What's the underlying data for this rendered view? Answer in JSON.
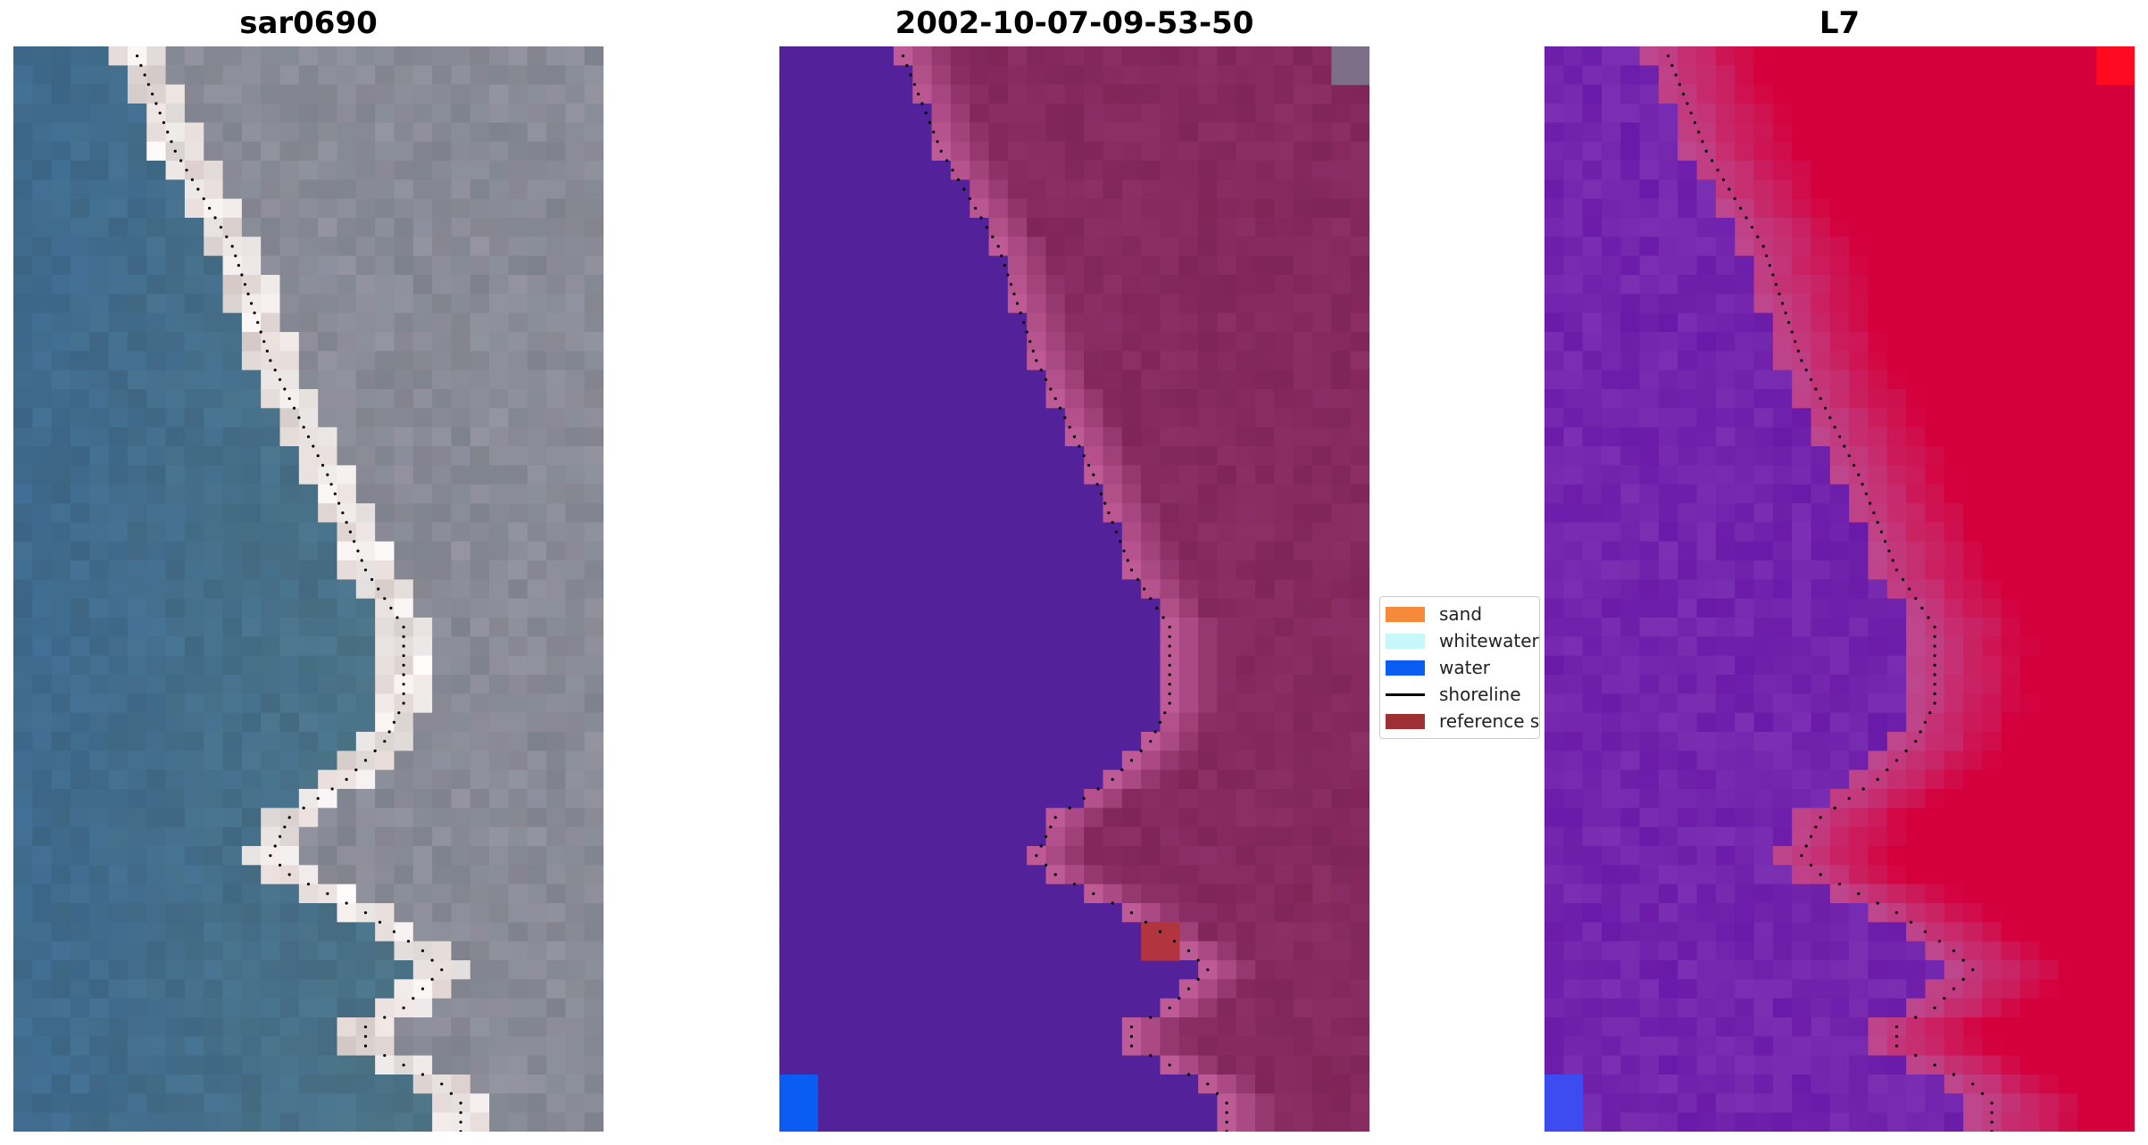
{
  "panels": [
    {
      "title": "sar0690",
      "image": "rgb-satellite-composite"
    },
    {
      "title": "2002-10-07-09-53-50",
      "image": "classified-overlay"
    },
    {
      "title": "L7",
      "image": "water-index-map"
    }
  ],
  "legend": {
    "items": [
      {
        "label": "sand",
        "color": "#f58a3a",
        "kind": "patch"
      },
      {
        "label": "whitewater",
        "color": "#c6f8fa",
        "kind": "patch"
      },
      {
        "label": "water",
        "color": "#0b5cf2",
        "kind": "patch"
      },
      {
        "label": "shoreline",
        "color": "#000000",
        "kind": "line"
      },
      {
        "label": "reference s",
        "color": "#9e3034",
        "kind": "patch"
      }
    ]
  },
  "colors": {
    "sea_rgb": "#3f6b8f",
    "land_rgb": "#7f8892",
    "beach_rgb": "#f4f1f0",
    "water_class": "#53229a",
    "land_class": "#8c2f66",
    "index_low": "#6a1aa8",
    "index_high": "#d4003c"
  }
}
